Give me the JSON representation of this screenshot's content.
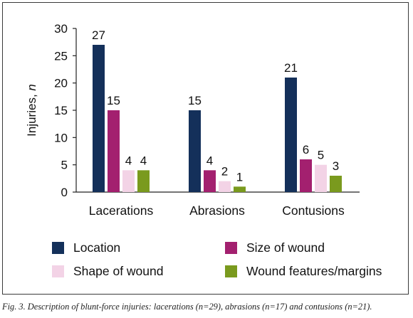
{
  "chart_data": {
    "type": "bar",
    "ylabel_main": "Injuries, ",
    "ylabel_italic": "n",
    "ylim": [
      0,
      30
    ],
    "yticks": [
      0,
      5,
      10,
      15,
      20,
      25,
      30
    ],
    "categories": [
      "Lacerations",
      "Abrasions",
      "Contusions"
    ],
    "series": [
      {
        "name": "Location",
        "color": "#14305a",
        "values": [
          27,
          15,
          21
        ]
      },
      {
        "name": "Size of wound",
        "color": "#a3206f",
        "values": [
          15,
          4,
          6
        ]
      },
      {
        "name": "Shape of wound",
        "color": "#f3d3e6",
        "values": [
          4,
          2,
          5
        ]
      },
      {
        "name": "Wound features/margins",
        "color": "#7a9a1e",
        "values": [
          4,
          1,
          3
        ]
      }
    ],
    "legend_position": "bottom",
    "grid": false
  },
  "caption": "Fig. 3. Description of blunt-force injuries: lacerations (n=29), abrasions (n=17) and contusions (n=21)."
}
